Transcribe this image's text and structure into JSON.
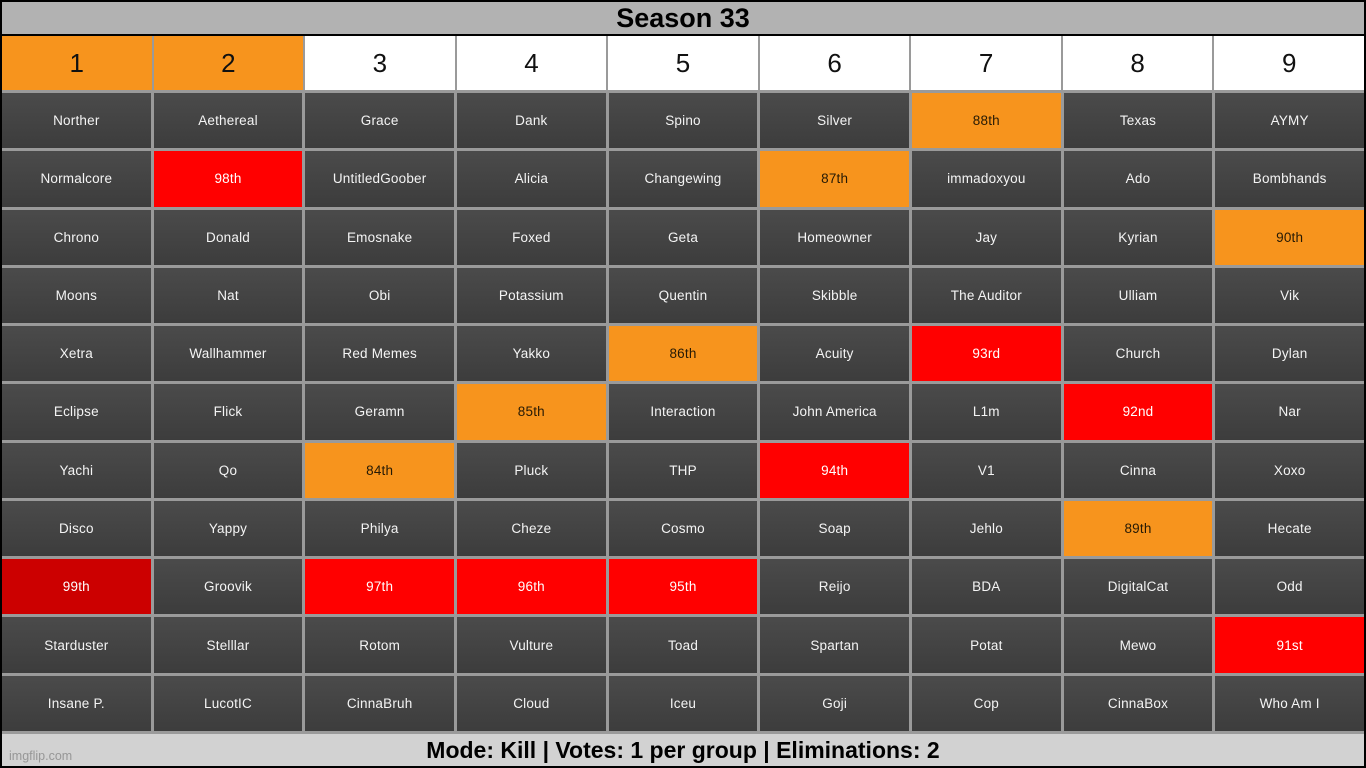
{
  "title": "Season 33",
  "header": {
    "columns": [
      {
        "label": "1",
        "highlight": "orange"
      },
      {
        "label": "2",
        "highlight": "orange"
      },
      {
        "label": "3",
        "highlight": "none"
      },
      {
        "label": "4",
        "highlight": "none"
      },
      {
        "label": "5",
        "highlight": "none"
      },
      {
        "label": "6",
        "highlight": "none"
      },
      {
        "label": "7",
        "highlight": "none"
      },
      {
        "label": "8",
        "highlight": "none"
      },
      {
        "label": "9",
        "highlight": "none"
      }
    ]
  },
  "grid": {
    "rows": [
      [
        {
          "label": "Norther",
          "type": "name"
        },
        {
          "label": "Aethereal",
          "type": "name"
        },
        {
          "label": "Grace",
          "type": "name"
        },
        {
          "label": "Dank",
          "type": "name"
        },
        {
          "label": "Spino",
          "type": "name"
        },
        {
          "label": "Silver",
          "type": "name"
        },
        {
          "label": "88th",
          "type": "orange"
        },
        {
          "label": "Texas",
          "type": "name"
        },
        {
          "label": "AYMY",
          "type": "name"
        }
      ],
      [
        {
          "label": "Normalcore",
          "type": "name"
        },
        {
          "label": "98th",
          "type": "red"
        },
        {
          "label": "UntitledGoober",
          "type": "name"
        },
        {
          "label": "Alicia",
          "type": "name"
        },
        {
          "label": "Changewing",
          "type": "name"
        },
        {
          "label": "87th",
          "type": "orange"
        },
        {
          "label": "immadoxyou",
          "type": "name"
        },
        {
          "label": "Ado",
          "type": "name"
        },
        {
          "label": "Bombhands",
          "type": "name"
        }
      ],
      [
        {
          "label": "Chrono",
          "type": "name"
        },
        {
          "label": "Donald",
          "type": "name"
        },
        {
          "label": "Emosnake",
          "type": "name"
        },
        {
          "label": "Foxed",
          "type": "name"
        },
        {
          "label": "Geta",
          "type": "name"
        },
        {
          "label": "Homeowner",
          "type": "name"
        },
        {
          "label": "Jay",
          "type": "name"
        },
        {
          "label": "Kyrian",
          "type": "name"
        },
        {
          "label": "90th",
          "type": "orange"
        }
      ],
      [
        {
          "label": "Moons",
          "type": "name"
        },
        {
          "label": "Nat",
          "type": "name"
        },
        {
          "label": "Obi",
          "type": "name"
        },
        {
          "label": "Potassium",
          "type": "name"
        },
        {
          "label": "Quentin",
          "type": "name"
        },
        {
          "label": "Skibble",
          "type": "name"
        },
        {
          "label": "The Auditor",
          "type": "name"
        },
        {
          "label": "Ulliam",
          "type": "name"
        },
        {
          "label": "Vik",
          "type": "name"
        }
      ],
      [
        {
          "label": "Xetra",
          "type": "name"
        },
        {
          "label": "Wallhammer",
          "type": "name"
        },
        {
          "label": "Red Memes",
          "type": "name"
        },
        {
          "label": "Yakko",
          "type": "name"
        },
        {
          "label": "86th",
          "type": "orange"
        },
        {
          "label": "Acuity",
          "type": "name"
        },
        {
          "label": "93rd",
          "type": "red"
        },
        {
          "label": "Church",
          "type": "name"
        },
        {
          "label": "Dylan",
          "type": "name"
        }
      ],
      [
        {
          "label": "Eclipse",
          "type": "name"
        },
        {
          "label": "Flick",
          "type": "name"
        },
        {
          "label": "Geramn",
          "type": "name"
        },
        {
          "label": "85th",
          "type": "orange"
        },
        {
          "label": "Interaction",
          "type": "name"
        },
        {
          "label": "John America",
          "type": "name"
        },
        {
          "label": "L1m",
          "type": "name"
        },
        {
          "label": "92nd",
          "type": "red"
        },
        {
          "label": "Nar",
          "type": "name"
        }
      ],
      [
        {
          "label": "Yachi",
          "type": "name"
        },
        {
          "label": "Qo",
          "type": "name"
        },
        {
          "label": "84th",
          "type": "orange"
        },
        {
          "label": "Pluck",
          "type": "name"
        },
        {
          "label": "THP",
          "type": "name"
        },
        {
          "label": "94th",
          "type": "red"
        },
        {
          "label": "V1",
          "type": "name"
        },
        {
          "label": "Cinna",
          "type": "name"
        },
        {
          "label": "Xoxo",
          "type": "name"
        }
      ],
      [
        {
          "label": "Disco",
          "type": "name"
        },
        {
          "label": "Yappy",
          "type": "name"
        },
        {
          "label": "Philya",
          "type": "name"
        },
        {
          "label": "Cheze",
          "type": "name"
        },
        {
          "label": "Cosmo",
          "type": "name"
        },
        {
          "label": "Soap",
          "type": "name"
        },
        {
          "label": "Jehlo",
          "type": "name"
        },
        {
          "label": "89th",
          "type": "orange"
        },
        {
          "label": "Hecate",
          "type": "name"
        }
      ],
      [
        {
          "label": "99th",
          "type": "darkred"
        },
        {
          "label": "Groovik",
          "type": "name"
        },
        {
          "label": "97th",
          "type": "red"
        },
        {
          "label": "96th",
          "type": "red"
        },
        {
          "label": "95th",
          "type": "red"
        },
        {
          "label": "Reijo",
          "type": "name"
        },
        {
          "label": "BDA",
          "type": "name"
        },
        {
          "label": "DigitalCat",
          "type": "name"
        },
        {
          "label": "Odd",
          "type": "name"
        }
      ],
      [
        {
          "label": "Starduster",
          "type": "name"
        },
        {
          "label": "Stelllar",
          "type": "name"
        },
        {
          "label": "Rotom",
          "type": "name"
        },
        {
          "label": "Vulture",
          "type": "name"
        },
        {
          "label": "Toad",
          "type": "name"
        },
        {
          "label": "Spartan",
          "type": "name"
        },
        {
          "label": "Potat",
          "type": "name"
        },
        {
          "label": "Mewo",
          "type": "name"
        },
        {
          "label": "91st",
          "type": "red"
        }
      ],
      [
        {
          "label": "Insane P.",
          "type": "name"
        },
        {
          "label": "LucotIC",
          "type": "name"
        },
        {
          "label": "CinnaBruh",
          "type": "name"
        },
        {
          "label": "Cloud",
          "type": "name"
        },
        {
          "label": "Iceu",
          "type": "name"
        },
        {
          "label": "Goji",
          "type": "name"
        },
        {
          "label": "Cop",
          "type": "name"
        },
        {
          "label": "CinnaBox",
          "type": "name"
        },
        {
          "label": "Who Am I",
          "type": "name"
        }
      ]
    ]
  },
  "footer": {
    "text": "Mode: Kill | Votes: 1 per group | Eliminations: 2",
    "watermark": "imgflip.com"
  },
  "colors": {
    "orange": "#F7941D",
    "red": "#FF0000",
    "dark_red": "#CC0000",
    "cell_bg": "#414141",
    "grid_line": "#9A9A9A",
    "title_bg": "#B2B2B2",
    "footer_bg": "#D2D2D2",
    "header_bg": "#FFFFFF"
  }
}
